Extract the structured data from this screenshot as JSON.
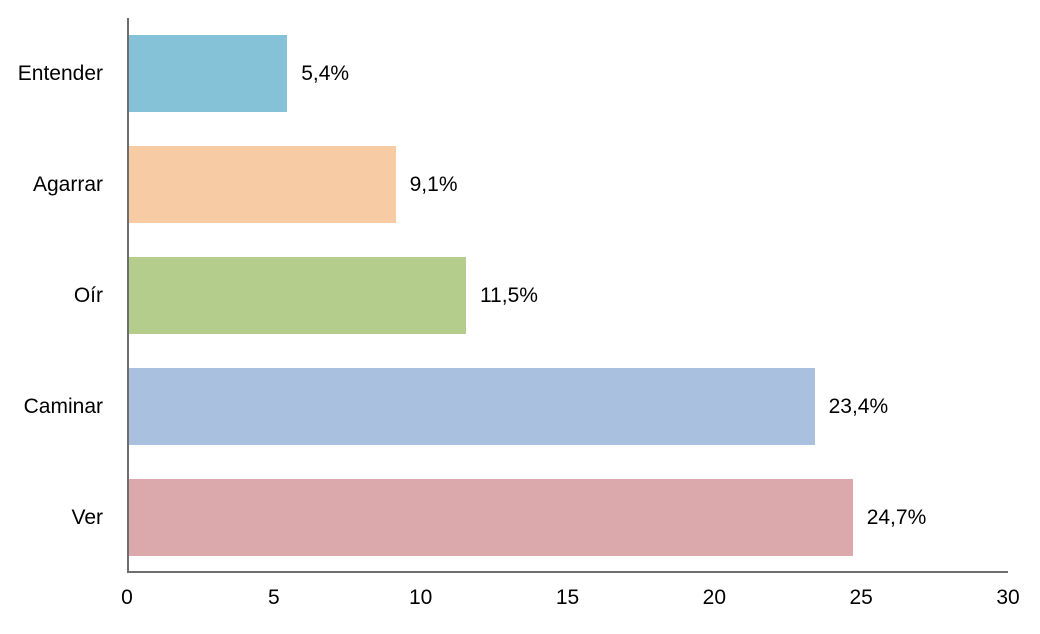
{
  "chart_data": {
    "type": "bar",
    "orientation": "horizontal",
    "title": "",
    "xlabel": "",
    "ylabel": "",
    "categories": [
      "Entender",
      "Agarrar",
      "Oír",
      "Caminar",
      "Ver"
    ],
    "values": [
      5.4,
      9.1,
      11.5,
      23.4,
      24.7
    ],
    "value_labels": [
      "5,4%",
      "9,1%",
      "11,5%",
      "23,4%",
      "24,7%"
    ],
    "bar_colors": [
      "#85C2D8",
      "#F7CBA3",
      "#B4CD8D",
      "#A9C0DF",
      "#DBA8AB"
    ],
    "xlim": [
      0,
      30
    ],
    "x_ticks": [
      0,
      5,
      10,
      15,
      20,
      25,
      30
    ],
    "x_tick_labels": [
      "0",
      "5",
      "10",
      "15",
      "20",
      "25",
      "30"
    ],
    "grid": false,
    "legend": false,
    "axis_color": "#6E6E6E",
    "text_color": "#000000",
    "background": "#FFFFFF"
  }
}
